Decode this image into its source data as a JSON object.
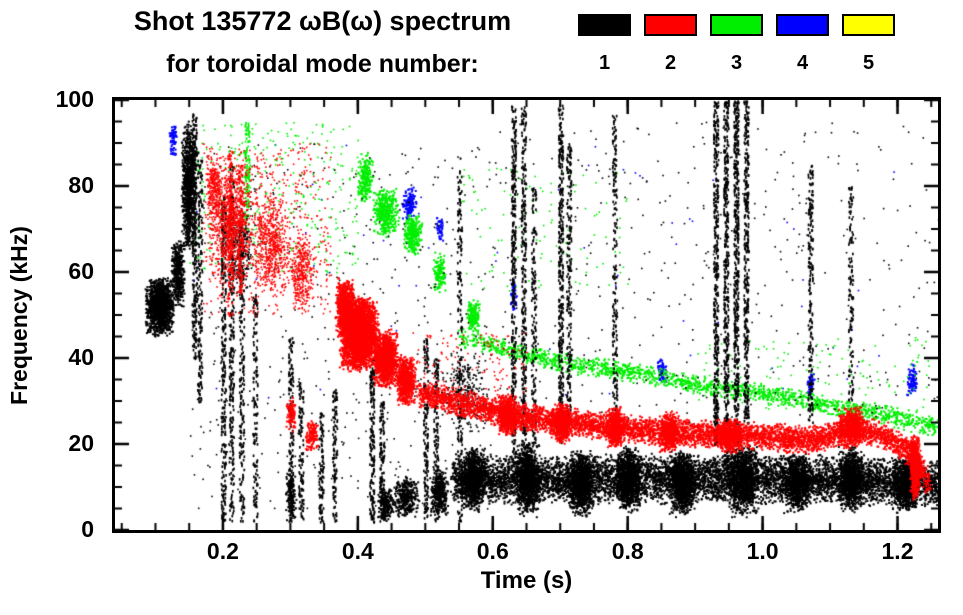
{
  "header": {
    "title": "Shot 135772 ωB(ω) spectrum",
    "subtitle": "for toroidal mode number:"
  },
  "legend": {
    "position": "top-right",
    "items": [
      {
        "label": "1",
        "color": "#000000"
      },
      {
        "label": "2",
        "color": "#ff0000"
      },
      {
        "label": "3",
        "color": "#00ee00"
      },
      {
        "label": "4",
        "color": "#0000ff"
      },
      {
        "label": "5",
        "color": "#ffff00"
      }
    ]
  },
  "chart_data": {
    "type": "scatter",
    "title": "Shot 135772 ωB(ω) spectrum",
    "subtitle": "for toroidal mode number:",
    "xlabel": "Time (s)",
    "ylabel": "Frequency (kHz)",
    "xlim": [
      0.04,
      1.26
    ],
    "ylim": [
      0,
      100
    ],
    "grid": false,
    "xticks": [
      {
        "v": 0.2,
        "label": "0.2"
      },
      {
        "v": 0.4,
        "label": "0.4"
      },
      {
        "v": 0.6,
        "label": "0.6"
      },
      {
        "v": 0.8,
        "label": "0.8"
      },
      {
        "v": 1.0,
        "label": "1.0"
      },
      {
        "v": 1.2,
        "label": "1.2"
      }
    ],
    "yticks": [
      {
        "v": 0,
        "label": "0"
      },
      {
        "v": 20,
        "label": "20"
      },
      {
        "v": 40,
        "label": "40"
      },
      {
        "v": 60,
        "label": "60"
      },
      {
        "v": 80,
        "label": "80"
      },
      {
        "v": 100,
        "label": "100"
      }
    ],
    "x_minor_step": 0.05,
    "y_minor_step": 5,
    "draw_order": [
      "5",
      "4",
      "3",
      "1",
      "2"
    ],
    "series": [
      {
        "name": "1",
        "color": "#000000",
        "clusters": [
          {
            "t": 0.105,
            "f": 52,
            "dt": 0.022,
            "df": 7,
            "n": 1400
          },
          {
            "t": 0.132,
            "f": 60,
            "dt": 0.01,
            "df": 8,
            "n": 450
          },
          {
            "t": 0.148,
            "f": 80,
            "dt": 0.011,
            "df": 16,
            "n": 900
          },
          {
            "t": 0.225,
            "f": 65,
            "dt": 0.02,
            "df": 12,
            "n": 260,
            "sz": 1.7
          },
          {
            "t": 0.56,
            "f": 32,
            "dt": 0.04,
            "df": 10,
            "n": 280,
            "sz": 1.7
          },
          {
            "t": 0.3,
            "f": 8,
            "dt": 0.008,
            "df": 6,
            "n": 150
          },
          {
            "t": 0.44,
            "f": 6,
            "dt": 0.012,
            "df": 4,
            "n": 200
          },
          {
            "t": 0.47,
            "f": 8,
            "dt": 0.02,
            "df": 5,
            "n": 350
          },
          {
            "t": 0.52,
            "f": 9,
            "dt": 0.015,
            "df": 6,
            "n": 350
          },
          {
            "t": 0.57,
            "f": 12,
            "dt": 0.02,
            "df": 8,
            "n": 900
          },
          {
            "t": 0.65,
            "f": 12,
            "dt": 0.02,
            "df": 9,
            "n": 900
          },
          {
            "t": 0.73,
            "f": 11,
            "dt": 0.02,
            "df": 8,
            "n": 900
          },
          {
            "t": 0.8,
            "f": 12,
            "dt": 0.02,
            "df": 8,
            "n": 900
          },
          {
            "t": 0.88,
            "f": 11,
            "dt": 0.02,
            "df": 8,
            "n": 900
          },
          {
            "t": 0.97,
            "f": 12,
            "dt": 0.025,
            "df": 9,
            "n": 1000
          },
          {
            "t": 1.05,
            "f": 11,
            "dt": 0.02,
            "df": 7,
            "n": 800
          },
          {
            "t": 1.13,
            "f": 12,
            "dt": 0.02,
            "df": 8,
            "n": 800
          },
          {
            "t": 1.21,
            "f": 11,
            "dt": 0.02,
            "df": 7,
            "n": 800
          }
        ],
        "bands": [
          {
            "pts": [
              [
                0.54,
                12
              ],
              [
                0.7,
                12
              ],
              [
                0.9,
                12
              ],
              [
                1.1,
                12
              ],
              [
                1.26,
                11
              ]
            ],
            "df": 6,
            "n": 7000
          }
        ],
        "vstreaks": [
          {
            "t": 0.157,
            "f0": 40,
            "f1": 97,
            "n": 260
          },
          {
            "t": 0.165,
            "f0": 30,
            "f1": 88,
            "n": 180
          },
          {
            "t": 0.2,
            "f0": 2,
            "f1": 78,
            "n": 300
          },
          {
            "t": 0.212,
            "f0": 2,
            "f1": 85,
            "n": 260
          },
          {
            "t": 0.227,
            "f0": 2,
            "f1": 70,
            "n": 200
          },
          {
            "t": 0.247,
            "f0": 2,
            "f1": 55,
            "n": 150
          },
          {
            "t": 0.3,
            "f0": 2,
            "f1": 45,
            "n": 160
          },
          {
            "t": 0.315,
            "f0": 2,
            "f1": 35,
            "n": 110
          },
          {
            "t": 0.345,
            "f0": 2,
            "f1": 28,
            "n": 100
          },
          {
            "t": 0.365,
            "f0": 2,
            "f1": 33,
            "n": 110
          },
          {
            "t": 0.42,
            "f0": 2,
            "f1": 40,
            "n": 190
          },
          {
            "t": 0.435,
            "f0": 2,
            "f1": 30,
            "n": 130
          },
          {
            "t": 0.5,
            "f0": 2,
            "f1": 45,
            "n": 170
          },
          {
            "t": 0.515,
            "f0": 2,
            "f1": 40,
            "n": 130
          },
          {
            "t": 0.55,
            "f0": 2,
            "f1": 85,
            "n": 190
          },
          {
            "t": 0.63,
            "f0": 15,
            "f1": 99,
            "n": 350
          },
          {
            "t": 0.645,
            "f0": 15,
            "f1": 99,
            "n": 310
          },
          {
            "t": 0.66,
            "f0": 20,
            "f1": 80,
            "n": 160
          },
          {
            "t": 0.7,
            "f0": 20,
            "f1": 99,
            "n": 360
          },
          {
            "t": 0.712,
            "f0": 25,
            "f1": 90,
            "n": 220
          },
          {
            "t": 0.78,
            "f0": 28,
            "f1": 97,
            "n": 190
          },
          {
            "t": 0.93,
            "f0": 20,
            "f1": 100,
            "n": 420
          },
          {
            "t": 0.945,
            "f0": 15,
            "f1": 100,
            "n": 460
          },
          {
            "t": 0.96,
            "f0": 20,
            "f1": 100,
            "n": 460
          },
          {
            "t": 0.975,
            "f0": 25,
            "f1": 100,
            "n": 360
          },
          {
            "t": 1.07,
            "f0": 25,
            "f1": 85,
            "n": 210
          },
          {
            "t": 1.13,
            "f0": 30,
            "f1": 80,
            "n": 130
          }
        ],
        "noise": [
          {
            "t0": 0.15,
            "t1": 0.6,
            "f0": 5,
            "f1": 90,
            "n": 450
          },
          {
            "t0": 0.6,
            "t1": 1.26,
            "f0": 25,
            "f1": 95,
            "n": 380
          }
        ]
      },
      {
        "name": "2",
        "color": "#ff0000",
        "clusters": [
          {
            "t": 0.21,
            "f": 72,
            "dt": 0.035,
            "df": 14,
            "n": 900,
            "sz": 1.6
          },
          {
            "t": 0.27,
            "f": 66,
            "dt": 0.03,
            "df": 12,
            "n": 600,
            "sz": 1.6
          },
          {
            "t": 0.315,
            "f": 60,
            "dt": 0.02,
            "df": 10,
            "n": 350,
            "sz": 1.6
          },
          {
            "t": 0.185,
            "f": 80,
            "dt": 0.012,
            "df": 8,
            "n": 250,
            "sz": 1.6
          },
          {
            "t": 0.38,
            "f": 52,
            "dt": 0.015,
            "df": 7,
            "n": 700
          },
          {
            "t": 0.4,
            "f": 46,
            "dt": 0.03,
            "df": 9,
            "n": 3000
          },
          {
            "t": 0.44,
            "f": 40,
            "dt": 0.02,
            "df": 7,
            "n": 1100
          },
          {
            "t": 0.47,
            "f": 35,
            "dt": 0.015,
            "df": 6,
            "n": 650
          },
          {
            "t": 0.33,
            "f": 22,
            "dt": 0.01,
            "df": 4,
            "n": 130
          },
          {
            "t": 0.3,
            "f": 27,
            "dt": 0.008,
            "df": 5,
            "n": 100
          },
          {
            "t": 0.62,
            "f": 27,
            "dt": 0.015,
            "df": 5,
            "n": 500
          },
          {
            "t": 0.7,
            "f": 25,
            "dt": 0.015,
            "df": 5,
            "n": 500
          },
          {
            "t": 0.78,
            "f": 24,
            "dt": 0.015,
            "df": 5,
            "n": 500
          },
          {
            "t": 0.86,
            "f": 23,
            "dt": 0.015,
            "df": 5,
            "n": 500
          },
          {
            "t": 0.95,
            "f": 22,
            "dt": 0.02,
            "df": 4,
            "n": 500
          },
          {
            "t": 1.13,
            "f": 24,
            "dt": 0.02,
            "df": 5,
            "n": 600
          },
          {
            "t": 1.225,
            "f": 15,
            "dt": 0.008,
            "df": 8,
            "n": 600
          }
        ],
        "bands": [
          {
            "pts": [
              [
                0.49,
                32
              ],
              [
                0.55,
                30
              ],
              [
                0.62,
                27
              ],
              [
                0.72,
                25
              ],
              [
                0.85,
                23
              ],
              [
                1.0,
                22
              ],
              [
                1.07,
                21
              ],
              [
                1.13,
                24
              ],
              [
                1.18,
                22
              ],
              [
                1.22,
                18
              ],
              [
                1.245,
                11
              ]
            ],
            "df": 3.5,
            "n": 5200
          }
        ],
        "vstreaks": [
          {
            "t": 0.21,
            "f0": 50,
            "f1": 88,
            "n": 130
          },
          {
            "t": 0.225,
            "f0": 55,
            "f1": 85,
            "n": 110
          }
        ],
        "noise": [
          {
            "t0": 0.17,
            "t1": 0.36,
            "f0": 50,
            "f1": 90,
            "n": 500
          },
          {
            "t0": 0.48,
            "t1": 0.65,
            "f0": 30,
            "f1": 46,
            "n": 160
          }
        ]
      },
      {
        "name": "3",
        "color": "#00ee00",
        "clusters": [
          {
            "t": 0.44,
            "f": 74,
            "dt": 0.02,
            "df": 6,
            "n": 400
          },
          {
            "t": 0.48,
            "f": 69,
            "dt": 0.015,
            "df": 5,
            "n": 280
          },
          {
            "t": 0.41,
            "f": 82,
            "dt": 0.012,
            "df": 6,
            "n": 220
          },
          {
            "t": 0.52,
            "f": 60,
            "dt": 0.01,
            "df": 5,
            "n": 140
          },
          {
            "t": 0.57,
            "f": 50,
            "dt": 0.01,
            "df": 4,
            "n": 160
          }
        ],
        "bands": [
          {
            "pts": [
              [
                0.55,
                45
              ],
              [
                0.62,
                42
              ],
              [
                0.7,
                39
              ],
              [
                0.8,
                37
              ],
              [
                0.9,
                34
              ],
              [
                1.0,
                32
              ],
              [
                1.1,
                29
              ],
              [
                1.18,
                27
              ],
              [
                1.26,
                24
              ]
            ],
            "df": 2.5,
            "n": 1600
          }
        ],
        "vstreaks": [
          {
            "t": 0.235,
            "f0": 70,
            "f1": 95,
            "n": 90
          }
        ],
        "noise": [
          {
            "t0": 0.15,
            "t1": 0.4,
            "f0": 60,
            "f1": 95,
            "n": 380
          },
          {
            "t0": 0.55,
            "t1": 0.8,
            "f0": 55,
            "f1": 85,
            "n": 120
          },
          {
            "t0": 0.9,
            "t1": 1.26,
            "f0": 28,
            "f1": 45,
            "n": 140
          }
        ]
      },
      {
        "name": "4",
        "color": "#0000ff",
        "clusters": [
          {
            "t": 0.125,
            "f": 91,
            "dt": 0.006,
            "df": 4,
            "n": 70
          },
          {
            "t": 0.475,
            "f": 76,
            "dt": 0.012,
            "df": 4,
            "n": 130
          },
          {
            "t": 0.52,
            "f": 70,
            "dt": 0.006,
            "df": 3,
            "n": 45
          },
          {
            "t": 0.63,
            "f": 55,
            "dt": 0.005,
            "df": 4,
            "n": 45
          },
          {
            "t": 0.85,
            "f": 37,
            "dt": 0.008,
            "df": 3,
            "n": 70
          },
          {
            "t": 1.07,
            "f": 34,
            "dt": 0.006,
            "df": 3,
            "n": 55
          },
          {
            "t": 1.22,
            "f": 35,
            "dt": 0.008,
            "df": 4,
            "n": 90
          }
        ],
        "bands": [],
        "vstreaks": [],
        "noise": [
          {
            "t0": 0.15,
            "t1": 1.2,
            "f0": 30,
            "f1": 90,
            "n": 70
          }
        ]
      },
      {
        "name": "5",
        "color": "#ffff00",
        "clusters": [],
        "bands": [],
        "vstreaks": [],
        "noise": []
      }
    ]
  }
}
